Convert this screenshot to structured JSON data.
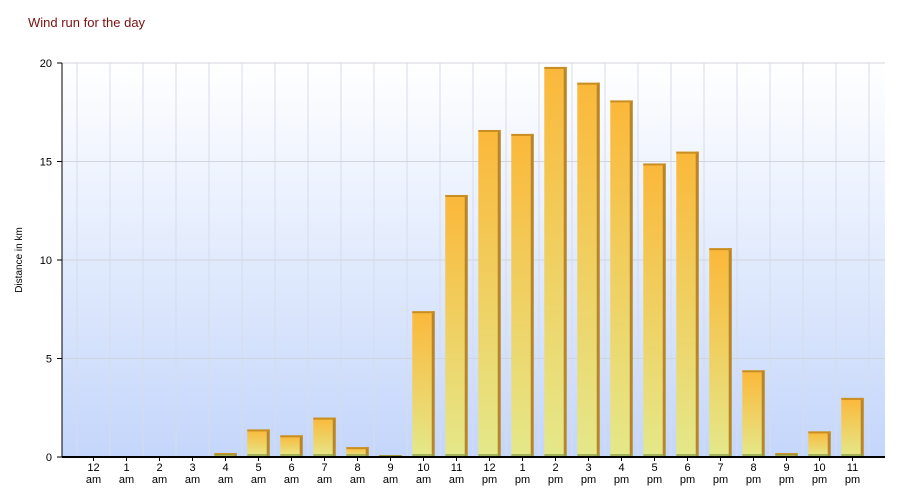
{
  "chart_data": {
    "type": "bar",
    "title": "Wind run for the day",
    "y_label": "Distance in km",
    "categories": [
      "12 am",
      "1 am",
      "2 am",
      "3 am",
      "4 am",
      "5 am",
      "6 am",
      "7 am",
      "8 am",
      "9 am",
      "10 am",
      "11 am",
      "12 pm",
      "1 pm",
      "2 pm",
      "3 pm",
      "4 pm",
      "5 pm",
      "6 pm",
      "7 pm",
      "8 pm",
      "9 pm",
      "10 pm",
      "11 pm"
    ],
    "values": [
      0,
      0,
      0,
      0,
      0.2,
      1.4,
      1.1,
      2.0,
      0.5,
      0.1,
      7.4,
      13.3,
      16.6,
      16.4,
      19.8,
      19.0,
      18.1,
      14.9,
      15.5,
      10.6,
      4.4,
      0.2,
      1.3,
      3.0
    ],
    "color": "#f5b73a",
    "ylim": [
      0,
      20
    ],
    "yticks": [
      0,
      5,
      10,
      15,
      20
    ],
    "grid": true
  }
}
